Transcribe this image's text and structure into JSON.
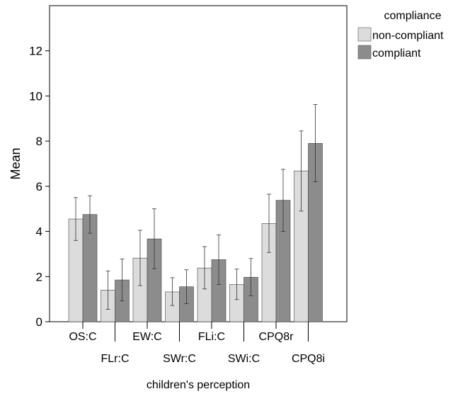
{
  "chart_data": {
    "type": "bar",
    "title": "",
    "xlabel": "children's perception",
    "ylabel": "Mean",
    "ylim": [
      0,
      14
    ],
    "yticks": [
      0,
      2,
      4,
      6,
      8,
      10,
      12
    ],
    "grid": false,
    "error_bars": true,
    "legend": {
      "title": "compliance",
      "placement": "top-right-outside"
    },
    "categories": [
      "OS:C",
      "FLr:C",
      "EW:C",
      "SWr:C",
      "FLi:C",
      "SWi:C",
      "CPQ8r",
      "CPQ8i"
    ],
    "series": [
      {
        "name": "non-compliant",
        "color": "#dcdcdc",
        "values": [
          4.55,
          1.4,
          2.82,
          1.32,
          2.38,
          1.65,
          4.35,
          6.68
        ],
        "err_low": [
          3.6,
          0.55,
          1.6,
          0.72,
          1.45,
          0.98,
          3.07,
          4.9
        ],
        "err_high": [
          5.5,
          2.25,
          4.05,
          1.95,
          3.33,
          2.33,
          5.65,
          8.45
        ]
      },
      {
        "name": "compliant",
        "color": "#8c8c8c",
        "values": [
          4.75,
          1.85,
          3.67,
          1.55,
          2.75,
          1.97,
          5.38,
          7.9
        ],
        "err_low": [
          3.92,
          0.92,
          2.35,
          0.8,
          1.65,
          1.15,
          4.0,
          6.2
        ],
        "err_high": [
          5.58,
          2.78,
          5.0,
          2.3,
          3.85,
          2.8,
          6.75,
          9.62
        ]
      }
    ]
  }
}
